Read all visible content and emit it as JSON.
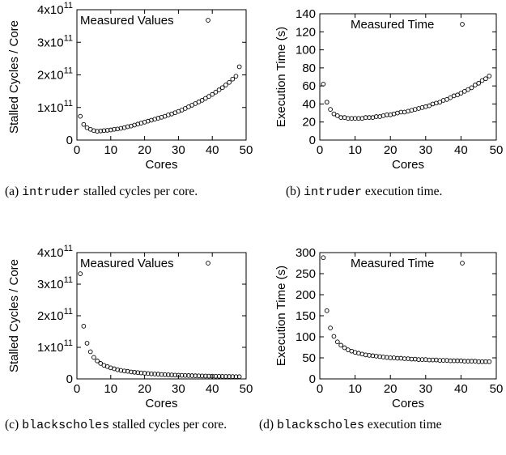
{
  "chart_data": [
    {
      "type": "scatter",
      "id": "a",
      "xlabel": "Cores",
      "ylabel": "Stalled Cycles / Core",
      "legend": "Measured Values",
      "legend_position": "top",
      "xlim": [
        0,
        50
      ],
      "ylim": [
        0,
        400000000000
      ],
      "xticks": [
        "0",
        "10",
        "20",
        "30",
        "40",
        "50"
      ],
      "yticks": [
        {
          "base": "0",
          "exp": ""
        },
        {
          "base": "1x10",
          "exp": "11"
        },
        {
          "base": "2x10",
          "exp": "11"
        },
        {
          "base": "3x10",
          "exp": "11"
        },
        {
          "base": "4x10",
          "exp": "11"
        }
      ],
      "x": [
        1,
        2,
        3,
        4,
        5,
        6,
        7,
        8,
        9,
        10,
        11,
        12,
        13,
        14,
        15,
        16,
        17,
        18,
        19,
        20,
        21,
        22,
        23,
        24,
        25,
        26,
        27,
        28,
        29,
        30,
        31,
        32,
        33,
        34,
        35,
        36,
        37,
        38,
        39,
        40,
        41,
        42,
        43,
        44,
        45,
        46,
        47,
        48
      ],
      "y": [
        73000000000.0,
        48000000000.0,
        38000000000.0,
        33000000000.0,
        29000000000.0,
        27000000000.0,
        28000000000.0,
        29000000000.0,
        30000000000.0,
        31000000000.0,
        33000000000.0,
        34000000000.0,
        36000000000.0,
        38000000000.0,
        41000000000.0,
        43000000000.0,
        46000000000.0,
        49000000000.0,
        52000000000.0,
        55000000000.0,
        58000000000.0,
        61000000000.0,
        64000000000.0,
        67000000000.0,
        70000000000.0,
        73000000000.0,
        77000000000.0,
        80000000000.0,
        84000000000.0,
        88000000000.0,
        92000000000.0,
        97000000000.0,
        102000000000.0,
        107000000000.0,
        112000000000.0,
        117000000000.0,
        122000000000.0,
        128000000000.0,
        134000000000.0,
        140000000000.0,
        147000000000.0,
        154000000000.0,
        161000000000.0,
        169000000000.0,
        177000000000.0,
        187000000000.0,
        196000000000.0,
        225000000000.0
      ]
    },
    {
      "type": "scatter",
      "id": "b",
      "xlabel": "Cores",
      "ylabel": "Execution Time (s)",
      "legend": "Measured Time",
      "legend_position": "top",
      "xlim": [
        0,
        50
      ],
      "ylim": [
        0,
        140
      ],
      "xticks": [
        "0",
        "10",
        "20",
        "30",
        "40",
        "50"
      ],
      "yticks": [
        "0",
        "20",
        "40",
        "60",
        "80",
        "100",
        "120",
        "140"
      ],
      "x": [
        1,
        2,
        3,
        4,
        5,
        6,
        7,
        8,
        9,
        10,
        11,
        12,
        13,
        14,
        15,
        16,
        17,
        18,
        19,
        20,
        21,
        22,
        23,
        24,
        25,
        26,
        27,
        28,
        29,
        30,
        31,
        32,
        33,
        34,
        35,
        36,
        37,
        38,
        39,
        40,
        41,
        42,
        43,
        44,
        45,
        46,
        47,
        48
      ],
      "y": [
        62,
        42,
        34,
        29,
        27,
        25,
        25,
        24,
        24,
        24,
        24,
        24,
        25,
        25,
        25,
        26,
        26,
        27,
        28,
        28,
        29,
        30,
        31,
        31,
        32,
        33,
        34,
        35,
        36,
        37,
        38,
        40,
        41,
        42,
        44,
        45,
        47,
        49,
        50,
        52,
        54,
        56,
        58,
        61,
        63,
        66,
        68,
        71
      ]
    },
    {
      "type": "scatter",
      "id": "c",
      "xlabel": "Cores",
      "ylabel": "Stalled Cycles / Core",
      "legend": "Measured Values",
      "legend_position": "top",
      "xlim": [
        0,
        50
      ],
      "ylim": [
        0,
        400000000000
      ],
      "xticks": [
        "0",
        "10",
        "20",
        "30",
        "40",
        "50"
      ],
      "yticks": [
        {
          "base": "0",
          "exp": ""
        },
        {
          "base": "1x10",
          "exp": "11"
        },
        {
          "base": "2x10",
          "exp": "11"
        },
        {
          "base": "3x10",
          "exp": "11"
        },
        {
          "base": "4x10",
          "exp": "11"
        }
      ],
      "x": [
        1,
        2,
        3,
        4,
        5,
        6,
        7,
        8,
        9,
        10,
        11,
        12,
        13,
        14,
        15,
        16,
        17,
        18,
        19,
        20,
        21,
        22,
        23,
        24,
        25,
        26,
        27,
        28,
        29,
        30,
        31,
        32,
        33,
        34,
        35,
        36,
        37,
        38,
        39,
        40,
        41,
        42,
        43,
        44,
        45,
        46,
        47,
        48
      ],
      "y": [
        333000000000.0,
        167000000000.0,
        113000000000.0,
        86000000000.0,
        68000000000.0,
        57000000000.0,
        49000000000.0,
        43000000000.0,
        39000000000.0,
        35000000000.0,
        32000000000.0,
        29000000000.0,
        27000000000.0,
        25000000000.0,
        24000000000.0,
        22000000000.0,
        21000000000.0,
        20000000000.0,
        19000000000.0,
        18000000000.0,
        17000000000.0,
        16000000000.0,
        15500000000.0,
        15000000000.0,
        14000000000.0,
        13500000000.0,
        13000000000.0,
        12500000000.0,
        12000000000.0,
        11600000000.0,
        11200000000.0,
        10800000000.0,
        10500000000.0,
        10200000000.0,
        9900000000.0,
        9600000000.0,
        9300000000.0,
        9000000000.0,
        8800000000.0,
        8600000000.0,
        8400000000.0,
        8200000000.0,
        8000000000.0,
        7800000000.0,
        7600000000.0,
        7400000000.0,
        7200000000.0,
        7000000000.0
      ]
    },
    {
      "type": "scatter",
      "id": "d",
      "xlabel": "Cores",
      "ylabel": "Execution Time (s)",
      "legend": "Measured Time",
      "legend_position": "top",
      "xlim": [
        0,
        50
      ],
      "ylim": [
        0,
        300
      ],
      "xticks": [
        "0",
        "10",
        "20",
        "30",
        "40",
        "50"
      ],
      "yticks": [
        "0",
        "50",
        "100",
        "150",
        "200",
        "250",
        "300"
      ],
      "x": [
        1,
        2,
        3,
        4,
        5,
        6,
        7,
        8,
        9,
        10,
        11,
        12,
        13,
        14,
        15,
        16,
        17,
        18,
        19,
        20,
        21,
        22,
        23,
        24,
        25,
        26,
        27,
        28,
        29,
        30,
        31,
        32,
        33,
        34,
        35,
        36,
        37,
        38,
        39,
        40,
        41,
        42,
        43,
        44,
        45,
        46,
        47,
        48
      ],
      "y": [
        288,
        162,
        121,
        101,
        88,
        80,
        74,
        69,
        66,
        63,
        61,
        59,
        57,
        56,
        55,
        54,
        53,
        52,
        51,
        50,
        50,
        49,
        49,
        48,
        48,
        47,
        47,
        46,
        46,
        46,
        45,
        45,
        45,
        44,
        44,
        44,
        43,
        43,
        43,
        43,
        42,
        42,
        42,
        42,
        41,
        41,
        41,
        41
      ]
    }
  ],
  "captions": {
    "a": {
      "prefix": "(a) ",
      "mono": "intruder",
      "suffix": " stalled cycles per core."
    },
    "b": {
      "prefix": "(b) ",
      "mono": "intruder",
      "suffix": " execution time."
    },
    "c": {
      "prefix": "(c) ",
      "mono": "blackscholes",
      "suffix": " stalled cycles per core."
    },
    "d": {
      "prefix": "(d) ",
      "mono": "blackscholes",
      "suffix": " execution time"
    }
  }
}
